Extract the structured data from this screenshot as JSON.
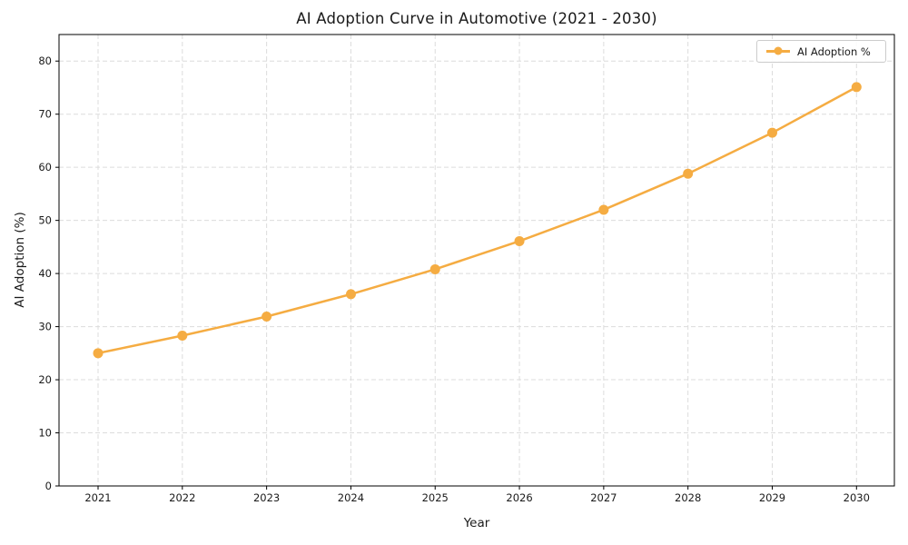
{
  "chart_data": {
    "type": "line",
    "title": "AI Adoption Curve in Automotive (2021 - 2030)",
    "xlabel": "Year",
    "ylabel": "AI Adoption (%)",
    "categories": [
      "2021",
      "2022",
      "2023",
      "2024",
      "2025",
      "2026",
      "2027",
      "2028",
      "2029",
      "2030"
    ],
    "series": [
      {
        "name": "AI Adoption %",
        "values": [
          25.0,
          28.3,
          31.9,
          36.1,
          40.8,
          46.1,
          52.0,
          58.8,
          66.5,
          75.1
        ]
      }
    ],
    "ylim": [
      0,
      85
    ],
    "yticks": [
      0,
      10,
      20,
      30,
      40,
      50,
      60,
      70,
      80
    ],
    "grid": "dashed",
    "legend_position": "upper right",
    "legend_label": "AI Adoption %",
    "colors": {
      "line": "#F5AC42",
      "marker": "#F5AC42",
      "grid": "#dcdcdc",
      "spine": "#000000",
      "text": "#1a1a1a",
      "background": "#ffffff",
      "legend_border": "#cccccc"
    }
  }
}
